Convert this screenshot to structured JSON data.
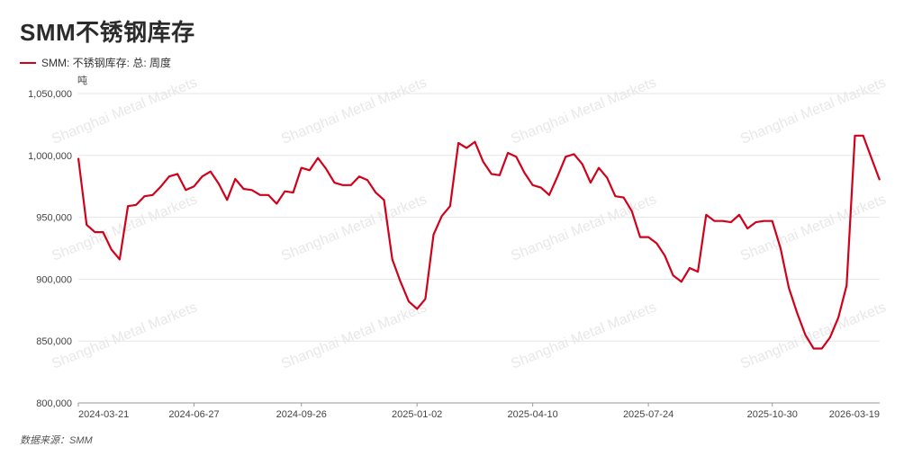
{
  "title": "SMM不锈钢库存",
  "legend_label": "SMM: 不锈钢库存: 总: 周度",
  "unit": "吨",
  "source": "数据来源：SMM",
  "watermark": "Shanghai Metal Markets",
  "colors": {
    "series": "#d0021b",
    "grid": "#e6e6e6",
    "axis": "#999999"
  },
  "chart_data": {
    "type": "line",
    "title": "SMM不锈钢库存",
    "ylabel": "吨",
    "ylim": [
      800000,
      1050000
    ],
    "yticks": [
      800000,
      850000,
      900000,
      950000,
      1000000,
      1050000
    ],
    "ytick_labels": [
      "800,000",
      "850,000",
      "900,000",
      "950,000",
      "1,000,000",
      "1,050,000"
    ],
    "xtick_labels": [
      "2024-03-21",
      "2024-06-27",
      "2024-09-26",
      "2025-01-02",
      "2025-04-10",
      "2025-07-24",
      "2025-10-30",
      "2026-03-19"
    ],
    "xtick_index": [
      0,
      14,
      27,
      41,
      55,
      69,
      84,
      103
    ],
    "grid": true,
    "legend": "top-left",
    "series": [
      {
        "name": "SMM: 不锈钢库存: 总: 周度",
        "values": [
          998000,
          944000,
          938000,
          938000,
          924000,
          916000,
          959000,
          960000,
          967000,
          968000,
          975000,
          983000,
          985000,
          972000,
          975000,
          983000,
          987000,
          977000,
          964000,
          981000,
          973000,
          972000,
          968000,
          968000,
          961000,
          971000,
          970000,
          990000,
          988000,
          998000,
          989000,
          978000,
          976000,
          976000,
          983000,
          980000,
          970000,
          964000,
          916000,
          898000,
          882000,
          876000,
          884000,
          936000,
          951000,
          959000,
          1010000,
          1006000,
          1011000,
          995000,
          985000,
          984000,
          1002000,
          999000,
          986000,
          976000,
          974000,
          968000,
          983000,
          999000,
          1001000,
          993000,
          978000,
          990000,
          982000,
          967000,
          966000,
          955000,
          934000,
          934000,
          929000,
          919000,
          903000,
          898000,
          909000,
          906000,
          952000,
          947000,
          947000,
          946000,
          952000,
          941000,
          946000,
          947000,
          947000,
          925000,
          893000,
          873000,
          855000,
          844000,
          844000,
          853000,
          869000,
          895000,
          1016000,
          1016000,
          998000,
          980000
        ]
      }
    ]
  }
}
